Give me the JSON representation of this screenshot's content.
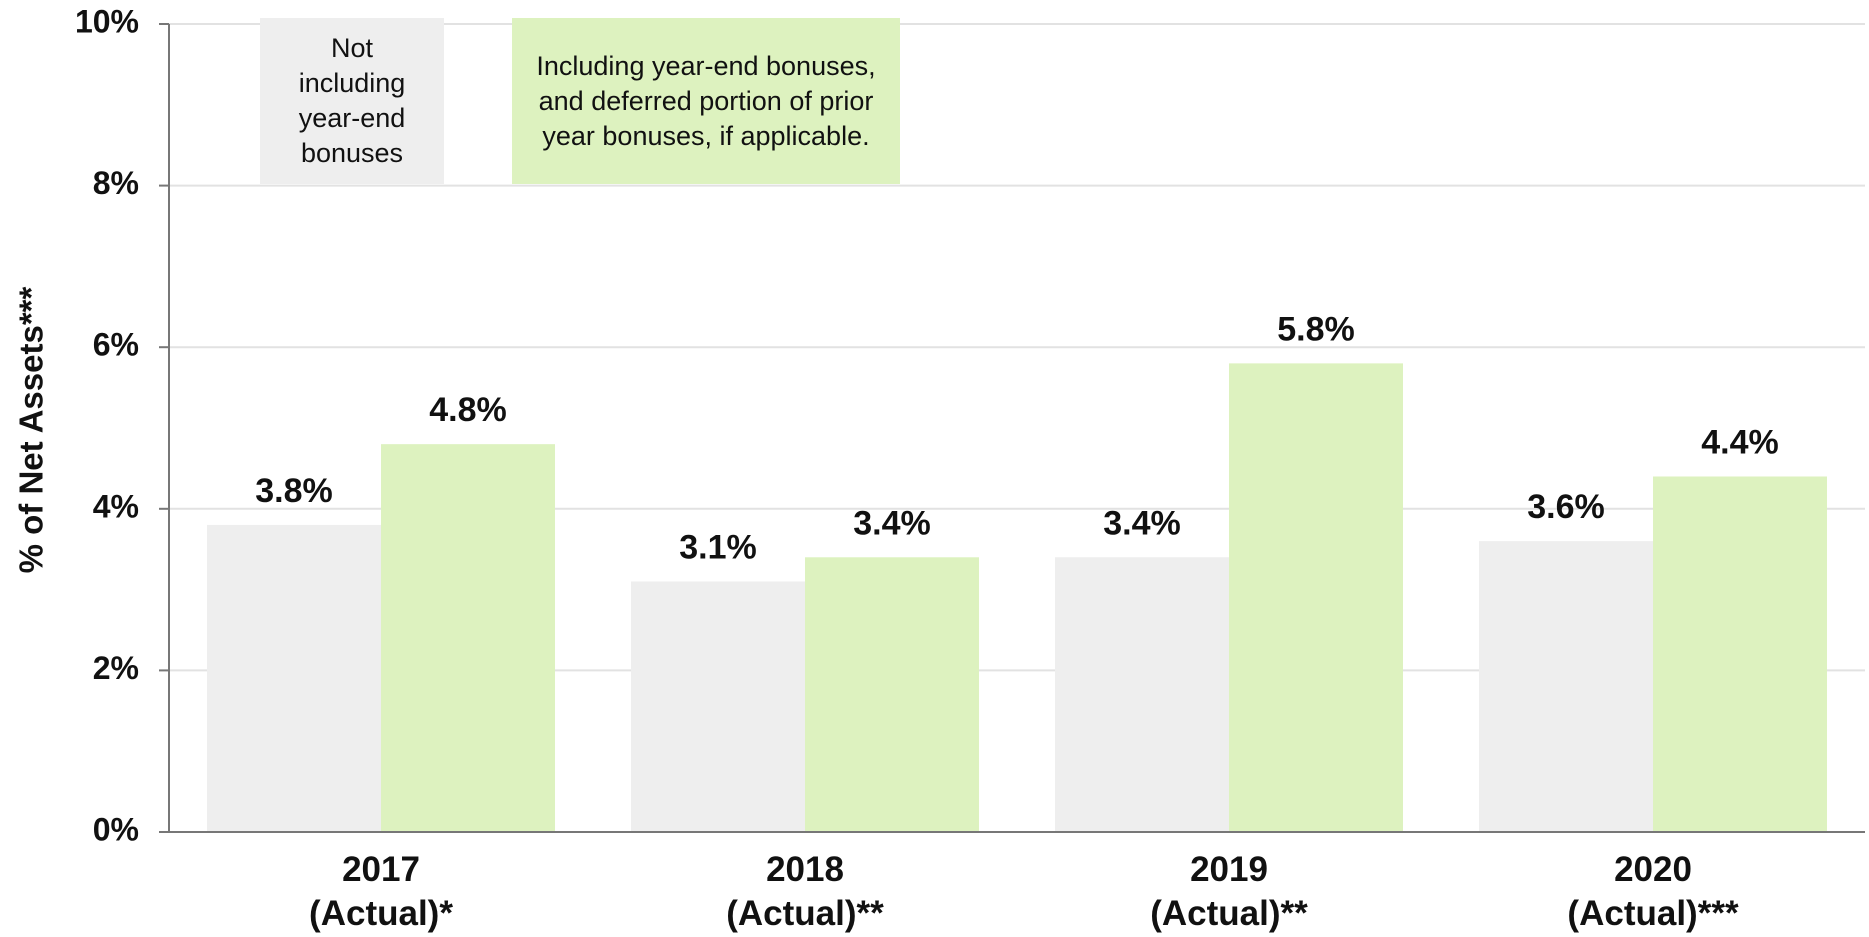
{
  "chart_data": {
    "type": "bar",
    "ylabel": "% of Net Assets***",
    "categories": [
      "2017 (Actual)*",
      "2018 (Actual)**",
      "2019 (Actual)**",
      "2020 (Actual)***"
    ],
    "series": [
      {
        "name": "Not including year-end bonuses",
        "color": "#eeeeee",
        "values": [
          3.8,
          3.1,
          3.4,
          3.6
        ],
        "value_labels": [
          "3.8%",
          "3.1%",
          "3.4%",
          "3.6%"
        ]
      },
      {
        "name": "Including year-end bonuses, and deferred portion of prior year bonuses, if applicable.",
        "color": "#ddf2bf",
        "values": [
          4.8,
          3.4,
          5.8,
          4.4
        ],
        "value_labels": [
          "4.8%",
          "3.4%",
          "5.8%",
          "4.4%"
        ]
      }
    ],
    "ylim": [
      0,
      10
    ],
    "yticks": [
      {
        "value": 0,
        "label": "0%"
      },
      {
        "value": 2,
        "label": "2%"
      },
      {
        "value": 4,
        "label": "4%"
      },
      {
        "value": 6,
        "label": "6%"
      },
      {
        "value": 8,
        "label": "8%"
      },
      {
        "value": 10,
        "label": "10%"
      }
    ],
    "grid": true
  }
}
